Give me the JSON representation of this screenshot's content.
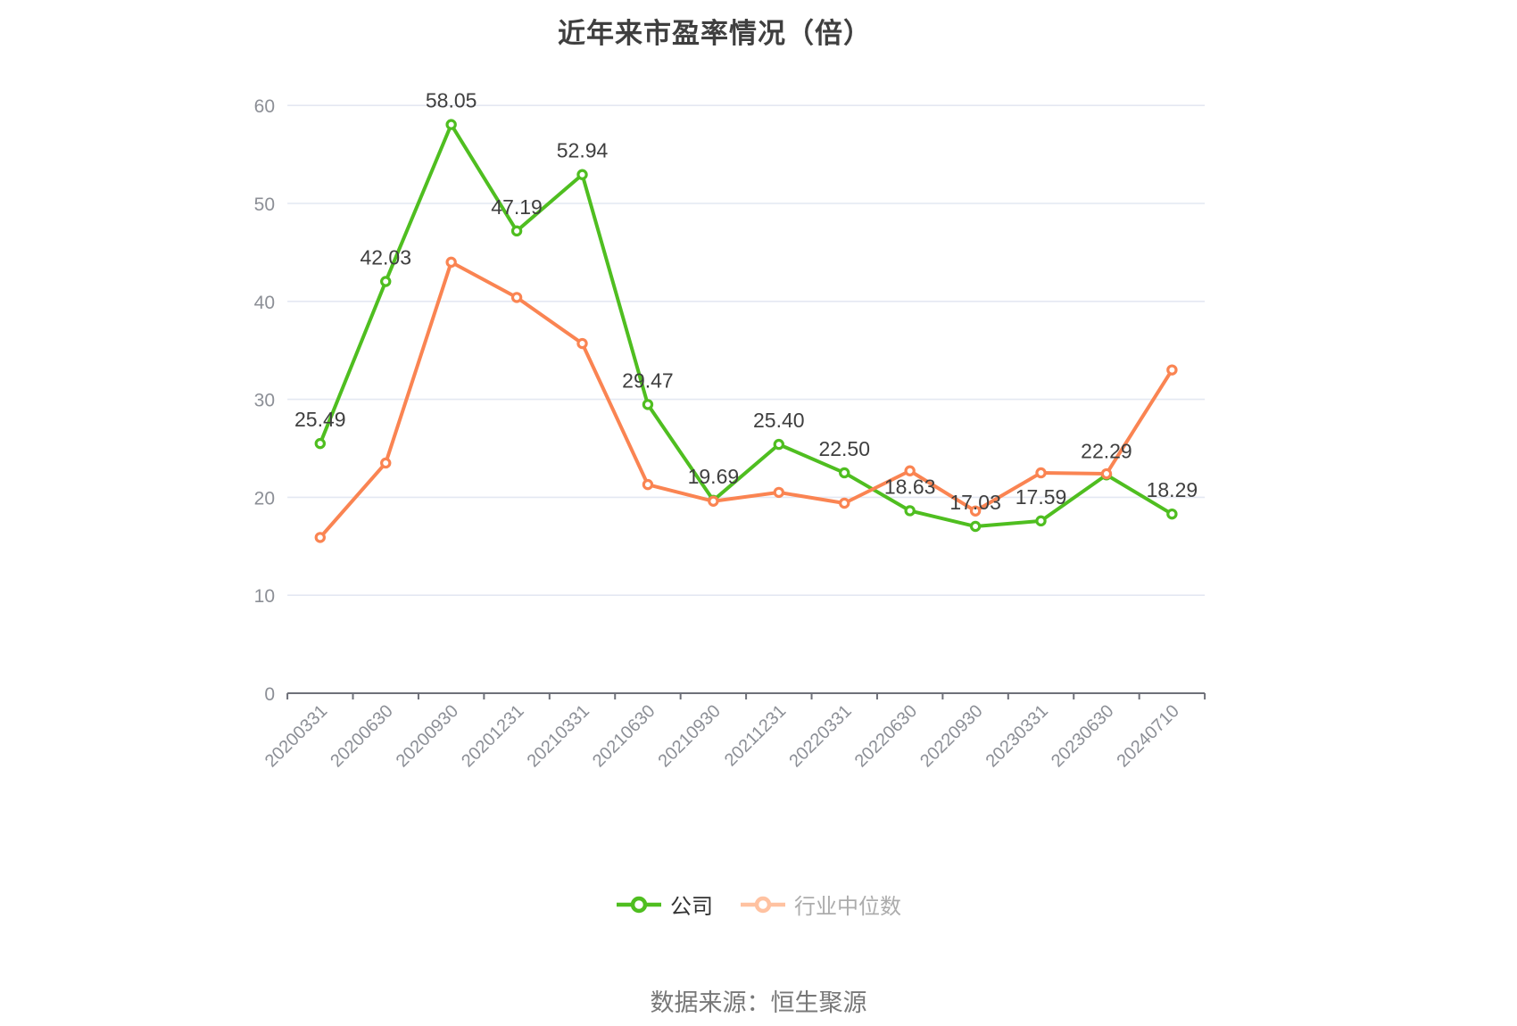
{
  "title": "近年来市盈率情况（倍）",
  "source_note": "数据来源：恒生聚源",
  "colors": {
    "company": "#4FBE20",
    "industry": "#FA8452",
    "legend_industry_marker": "#FFC2A1",
    "legend_text_active": "#333333",
    "legend_text_inactive": "#ACACAC",
    "grid_line": "#E4E8F2",
    "axis_line": "#6E7079",
    "axis_label": "#8C8F96",
    "value_label": "#3F3F3F"
  },
  "legend": {
    "items": [
      {
        "label": "公司",
        "series": "company",
        "active": true
      },
      {
        "label": "行业中位数",
        "series": "industry",
        "active": false
      }
    ]
  },
  "chart_data": {
    "type": "line",
    "title": "近年来市盈率情况（倍）",
    "categories": [
      "20200331",
      "20200630",
      "20200930",
      "20201231",
      "20210331",
      "20210630",
      "20210930",
      "20211231",
      "20220331",
      "20220630",
      "20220930",
      "20230331",
      "20230630",
      "20240710"
    ],
    "series": [
      {
        "name": "公司",
        "color": "#4FBE20",
        "data_labels": true,
        "values": [
          25.49,
          42.03,
          58.05,
          47.19,
          52.94,
          29.47,
          19.69,
          25.4,
          22.5,
          18.63,
          17.03,
          17.59,
          22.29,
          18.29
        ]
      },
      {
        "name": "行业中位数",
        "color": "#FA8452",
        "data_labels": false,
        "values": [
          15.9,
          23.5,
          44.0,
          40.4,
          35.7,
          21.3,
          19.6,
          20.5,
          19.4,
          22.7,
          18.6,
          22.5,
          22.4,
          33.0
        ]
      }
    ],
    "ylim": [
      0,
      60
    ],
    "y_ticks": [
      0,
      10,
      20,
      30,
      40,
      50,
      60
    ],
    "grid": "horizontal-only",
    "legend_position": "bottom",
    "x_label_rotation": 45
  }
}
